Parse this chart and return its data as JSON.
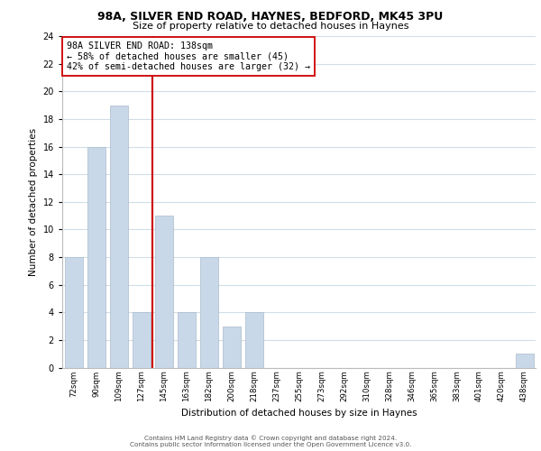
{
  "title_line1": "98A, SILVER END ROAD, HAYNES, BEDFORD, MK45 3PU",
  "title_line2": "Size of property relative to detached houses in Haynes",
  "xlabel": "Distribution of detached houses by size in Haynes",
  "ylabel": "Number of detached properties",
  "bar_color": "#c8d8e8",
  "bar_edge_color": "#aabbcc",
  "categories": [
    "72sqm",
    "90sqm",
    "109sqm",
    "127sqm",
    "145sqm",
    "163sqm",
    "182sqm",
    "200sqm",
    "218sqm",
    "237sqm",
    "255sqm",
    "273sqm",
    "292sqm",
    "310sqm",
    "328sqm",
    "346sqm",
    "365sqm",
    "383sqm",
    "401sqm",
    "420sqm",
    "438sqm"
  ],
  "values": [
    8,
    16,
    19,
    4,
    11,
    4,
    8,
    3,
    4,
    0,
    0,
    0,
    0,
    0,
    0,
    0,
    0,
    0,
    0,
    0,
    1
  ],
  "ylim": [
    0,
    24
  ],
  "yticks": [
    0,
    2,
    4,
    6,
    8,
    10,
    12,
    14,
    16,
    18,
    20,
    22,
    24
  ],
  "property_line_x": 3.5,
  "property_line_color": "#cc0000",
  "annotation_line1": "98A SILVER END ROAD: 138sqm",
  "annotation_line2": "← 58% of detached houses are smaller (45)",
  "annotation_line3": "42% of semi-detached houses are larger (32) →",
  "annotation_box_color": "#ffffff",
  "annotation_box_edge": "#cc0000",
  "footer_line1": "Contains HM Land Registry data © Crown copyright and database right 2024.",
  "footer_line2": "Contains public sector information licensed under the Open Government Licence v3.0.",
  "bg_color": "#ffffff",
  "grid_color": "#d0dde8"
}
